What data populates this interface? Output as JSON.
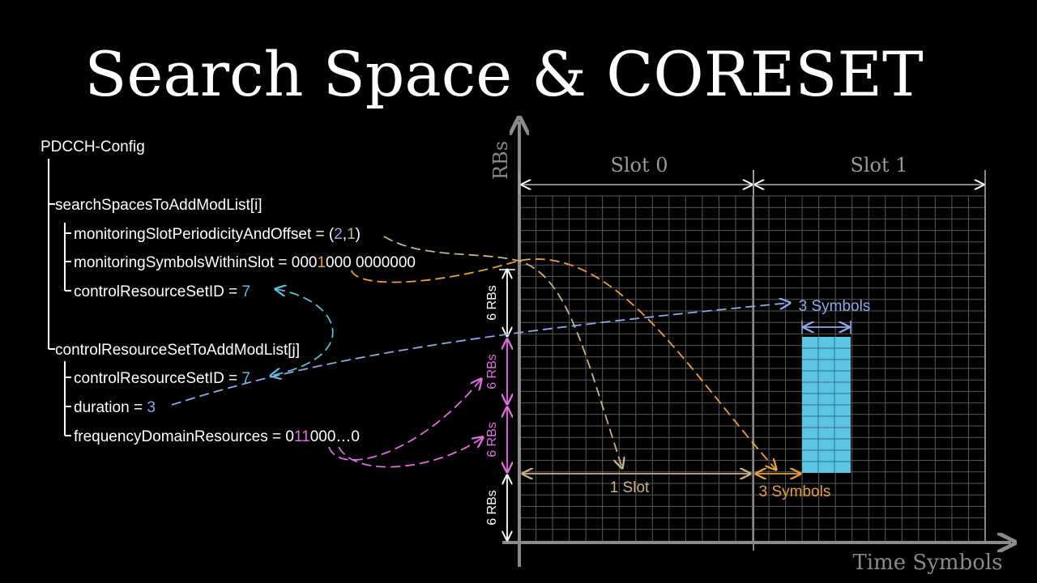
{
  "title": "Search Space & CORESET",
  "config_tree": {
    "root": "PDCCH-Config",
    "search_spaces": {
      "label": "searchSpacesToAddModList[i]",
      "periodicity": {
        "prefix": "monitoringSlotPeriodicityAndOffset = (",
        "a": "2",
        "comma": ",",
        "b": "1",
        "suffix": ")"
      },
      "symbols": {
        "prefix": "monitoringSymbolsWithinSlot = 000",
        "highlight": "1",
        "suffix": "000 0000000"
      },
      "coreset_id": {
        "prefix": "controlResourceSetID = ",
        "value": "7"
      }
    },
    "coresets": {
      "label": "controlResourceSetToAddModList[j]",
      "coreset_id": {
        "prefix": "controlResourceSetID = ",
        "value": "7"
      },
      "duration": {
        "prefix": "duration = ",
        "value": "3"
      },
      "freq": {
        "prefix": "frequencyDomainResources = 0",
        "highlight": "11",
        "suffix": "000…0"
      }
    }
  },
  "diagram": {
    "y_axis_label": "RBs",
    "x_axis_label": "Time Symbols",
    "slot_labels": [
      "Slot 0",
      "Slot 1"
    ],
    "rb_labels": [
      "6 RBs",
      "6 RBs",
      "6 RBs",
      "6 RBs"
    ],
    "one_slot_label": "1 Slot",
    "three_symbols_top": "3 Symbols",
    "three_symbols_bottom": "3 Symbols",
    "colors": {
      "white": "#ffffff",
      "grid": "#666666",
      "tan": "#c9b28a",
      "orange": "#e6a03c",
      "blue": "#8fa8e8",
      "cyan": "#5fbcd6",
      "pink": "#e070e0",
      "coreset_fill": "#5cc4e0",
      "gray_axis": "#8a8a8a"
    }
  }
}
